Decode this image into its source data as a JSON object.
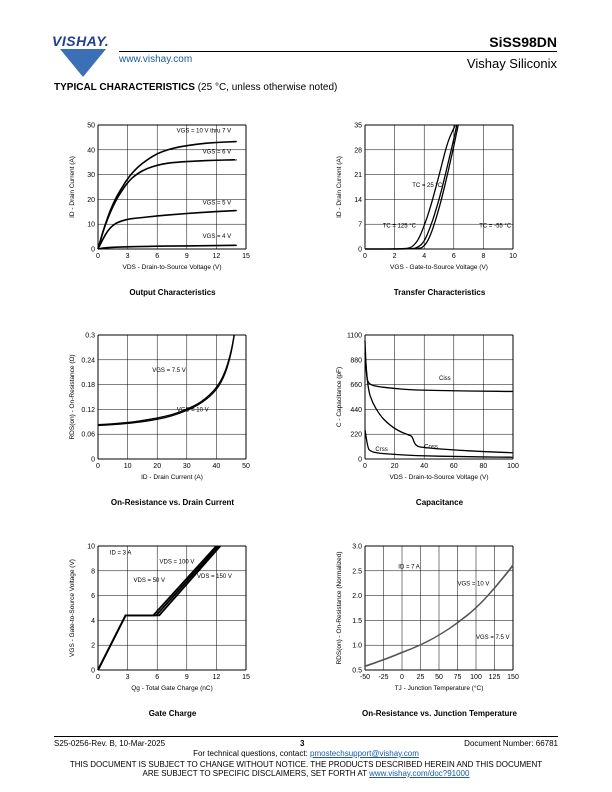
{
  "header": {
    "logo_text": "VISHAY.",
    "website": "www.vishay.com",
    "part_number": "SiSS98DN",
    "company": "Vishay Siliconix"
  },
  "section": {
    "title": "TYPICAL CHARACTERISTICS",
    "note": " (25 °C, unless otherwise noted)"
  },
  "charts": [
    {
      "name": "output",
      "caption": "Output Characteristics",
      "xlabel": "VDS - Drain-to-Source Voltage (V)",
      "ylabel": "ID - Drain Current (A)",
      "xticks": [
        "0",
        "3",
        "6",
        "9",
        "12",
        "15"
      ],
      "yticks": [
        "0",
        "10",
        "20",
        "30",
        "40",
        "50"
      ],
      "labels": [
        "VGS = 10 V thru 7 V",
        "VGS = 6 V",
        "VGS = 5 V",
        "VGS = 4 V"
      ]
    },
    {
      "name": "transfer",
      "caption": "Transfer Characteristics",
      "xlabel": "VGS - Gate-to-Source Voltage (V)",
      "ylabel": "ID - Drain Current (A)",
      "xticks": [
        "0",
        "2",
        "4",
        "6",
        "8",
        "10"
      ],
      "yticks": [
        "0",
        "7",
        "14",
        "21",
        "28",
        "35"
      ],
      "labels": [
        "TC = 25 °C",
        "TC = 125 °C",
        "TC = -55 °C"
      ]
    },
    {
      "name": "onres",
      "caption": "On-Resistance vs. Drain Current",
      "xlabel": "ID - Drain Current (A)",
      "ylabel": "RDS(on) - On-Resistance (Ω)",
      "xticks": [
        "0",
        "10",
        "20",
        "30",
        "40",
        "50"
      ],
      "yticks": [
        "0",
        "0.06",
        "0.12",
        "0.18",
        "0.24",
        "0.3"
      ],
      "labels": [
        "VGS = 7.5 V",
        "VGS = 10 V"
      ]
    },
    {
      "name": "cap",
      "caption": "Capacitance",
      "xlabel": "VDS - Drain-to-Source Voltage (V)",
      "ylabel": "C - Capacitance (pF)",
      "xticks": [
        "0",
        "20",
        "40",
        "60",
        "80",
        "100"
      ],
      "yticks": [
        "0",
        "220",
        "440",
        "660",
        "880",
        "1100"
      ],
      "labels": [
        "Ciss",
        "Coss",
        "Crss"
      ]
    },
    {
      "name": "gate",
      "caption": "Gate Charge",
      "xlabel": "Qg - Total Gate Charge (nC)",
      "ylabel": "VGS - Gate-to-Source Voltage (V)",
      "xticks": [
        "0",
        "3",
        "6",
        "9",
        "12",
        "15"
      ],
      "yticks": [
        "0",
        "2",
        "4",
        "6",
        "8",
        "10"
      ],
      "labels": [
        "ID = 3 A",
        "VDS = 100 V",
        "VDS = 50 V",
        "VDS = 150 V"
      ]
    },
    {
      "name": "onrestemp",
      "caption": "On-Resistance vs. Junction Temperature",
      "xlabel": "TJ - Junction Temperature (°C)",
      "ylabel": "RDS(on) - On-Resistance (Normalized)",
      "xticks": [
        "-50",
        "-25",
        "0",
        "25",
        "50",
        "75",
        "100",
        "125",
        "150"
      ],
      "yticks": [
        "0.5",
        "1.0",
        "1.5",
        "2.0",
        "2.5",
        "3.0"
      ],
      "labels": [
        "ID = 7 A",
        "VGS = 10 V",
        "VGS = 7.5 V"
      ]
    }
  ],
  "chart_data": [
    {
      "type": "line",
      "title": "Output Characteristics",
      "xlabel": "VDS - Drain-to-Source Voltage (V)",
      "ylabel": "ID - Drain Current (A)",
      "xlim": [
        0,
        15
      ],
      "ylim": [
        0,
        50
      ],
      "series": [
        {
          "name": "VGS = 10 V thru 7 V",
          "x": [
            0,
            0.5,
            1,
            1.5,
            2,
            3,
            4,
            5,
            6,
            7,
            8,
            10,
            12,
            14
          ],
          "y": [
            0,
            7,
            13,
            18,
            22,
            28.5,
            33,
            36,
            38.5,
            40,
            41,
            42.3,
            43,
            43.3
          ]
        },
        {
          "name": "VGS = 6 V",
          "x": [
            0,
            0.5,
            1,
            1.5,
            2,
            3,
            4,
            5,
            6,
            7,
            8,
            10,
            12,
            14
          ],
          "y": [
            0,
            7,
            12.5,
            17,
            21,
            27,
            30.5,
            32.5,
            33.8,
            34.6,
            35,
            35.5,
            35.8,
            36
          ]
        },
        {
          "name": "VGS = 5 V",
          "x": [
            0,
            0.5,
            1,
            1.5,
            2,
            3,
            4,
            6,
            8,
            10,
            12,
            14
          ],
          "y": [
            0,
            4,
            7.5,
            9.5,
            10.8,
            12,
            12.5,
            13.3,
            14,
            14.6,
            15.1,
            15.5
          ]
        },
        {
          "name": "VGS = 4 V",
          "x": [
            0,
            0.5,
            1,
            2,
            4,
            6,
            8,
            10,
            12,
            14
          ],
          "y": [
            0,
            0.4,
            0.6,
            0.8,
            1.0,
            1.1,
            1.2,
            1.3,
            1.4,
            1.5
          ]
        }
      ]
    },
    {
      "type": "line",
      "title": "Transfer Characteristics",
      "xlabel": "VGS - Gate-to-Source Voltage (V)",
      "ylabel": "ID - Drain Current (A)",
      "xlim": [
        0,
        10
      ],
      "ylim": [
        0,
        35
      ],
      "series": [
        {
          "name": "TC = 25 °C",
          "x": [
            0,
            3.2,
            3.6,
            4,
            4.4,
            4.8,
            5.2,
            5.6,
            6,
            6.2
          ],
          "y": [
            0,
            0,
            0.5,
            2,
            6,
            11,
            17,
            24,
            31,
            35
          ]
        },
        {
          "name": "TC = 125 °C",
          "x": [
            0,
            2.8,
            3.2,
            3.6,
            4,
            4.4,
            4.8,
            5.2,
            5.6,
            6.1
          ],
          "y": [
            0,
            0,
            0.6,
            2.5,
            6.5,
            11.5,
            17.5,
            24,
            30.5,
            35
          ]
        },
        {
          "name": "TC = -55 °C",
          "x": [
            0,
            3.6,
            4,
            4.4,
            4.8,
            5.2,
            5.6,
            6,
            6.3
          ],
          "y": [
            0,
            0,
            0.7,
            3.5,
            8.5,
            14.5,
            21.5,
            29,
            35
          ]
        }
      ]
    },
    {
      "type": "line",
      "title": "On-Resistance vs. Drain Current",
      "xlabel": "ID - Drain Current (A)",
      "ylabel": "RDS(on) - On-Resistance (Ω)",
      "xlim": [
        0,
        50
      ],
      "ylim": [
        0,
        0.3
      ],
      "series": [
        {
          "name": "VGS = 7.5 V",
          "x": [
            0,
            5,
            10,
            15,
            20,
            25,
            30,
            35,
            40,
            43,
            45,
            46
          ],
          "y": [
            0.083,
            0.085,
            0.088,
            0.093,
            0.099,
            0.107,
            0.12,
            0.138,
            0.17,
            0.21,
            0.26,
            0.3
          ]
        },
        {
          "name": "VGS = 10 V",
          "x": [
            0,
            5,
            10,
            15,
            20,
            25,
            30,
            35,
            40,
            43,
            45,
            46
          ],
          "y": [
            0.081,
            0.083,
            0.086,
            0.09,
            0.096,
            0.104,
            0.117,
            0.135,
            0.165,
            0.205,
            0.255,
            0.3
          ]
        }
      ]
    },
    {
      "type": "line",
      "title": "Capacitance",
      "xlabel": "VDS - Drain-to-Source Voltage (V)",
      "ylabel": "C - Capacitance (pF)",
      "xlim": [
        0,
        100
      ],
      "ylim": [
        0,
        1100
      ],
      "series": [
        {
          "name": "Ciss",
          "x": [
            0,
            1,
            2,
            4,
            6,
            10,
            20,
            30,
            40,
            60,
            80,
            100
          ],
          "y": [
            1050,
            740,
            680,
            660,
            650,
            640,
            625,
            615,
            610,
            605,
            602,
            600
          ]
        },
        {
          "name": "Coss",
          "x": [
            0,
            2,
            5,
            10,
            15,
            20,
            25,
            30,
            32,
            34,
            40,
            60,
            80,
            100
          ],
          "y": [
            940,
            620,
            500,
            390,
            320,
            270,
            235,
            210,
            200,
            115,
            100,
            80,
            65,
            55
          ]
        },
        {
          "name": "Crss",
          "x": [
            0,
            2,
            4,
            6,
            10,
            20,
            30,
            40,
            60,
            80,
            100
          ],
          "y": [
            260,
            90,
            70,
            60,
            50,
            40,
            33,
            28,
            22,
            18,
            15
          ]
        }
      ]
    },
    {
      "type": "line",
      "title": "Gate Charge",
      "xlabel": "Qg - Total Gate Charge (nC)",
      "ylabel": "VGS - Gate-to-Source Voltage (V)",
      "xlim": [
        0,
        15
      ],
      "ylim": [
        0,
        10
      ],
      "series": [
        {
          "name": "VDS = 50 V",
          "x": [
            0,
            2.8,
            5.6,
            12
          ],
          "y": [
            0,
            4.4,
            4.4,
            10
          ]
        },
        {
          "name": "VDS = 100 V",
          "x": [
            0,
            2.8,
            5.9,
            12.2
          ],
          "y": [
            0,
            4.4,
            4.4,
            10
          ]
        },
        {
          "name": "VDS = 150 V",
          "x": [
            0,
            2.8,
            6.2,
            12.4
          ],
          "y": [
            0,
            4.4,
            4.4,
            10
          ]
        }
      ]
    },
    {
      "type": "line",
      "title": "On-Resistance vs. Junction Temperature",
      "xlabel": "TJ - Junction Temperature (°C)",
      "ylabel": "RDS(on) - On-Resistance (Normalized)",
      "xlim": [
        -50,
        150
      ],
      "ylim": [
        0.5,
        3.0
      ],
      "series": [
        {
          "name": "VGS = 10 V",
          "x": [
            -50,
            -25,
            0,
            25,
            50,
            75,
            100,
            125,
            150
          ],
          "y": [
            0.58,
            0.71,
            0.86,
            1.0,
            1.2,
            1.45,
            1.75,
            2.15,
            2.62
          ]
        },
        {
          "name": "VGS = 7.5 V",
          "x": [
            -50,
            -25,
            0,
            25,
            50,
            75,
            100,
            125,
            150
          ],
          "y": [
            0.57,
            0.7,
            0.85,
            1.0,
            1.2,
            1.44,
            1.74,
            2.14,
            2.6
          ]
        }
      ]
    }
  ],
  "footer": {
    "docrev": "S25-0256-Rev. B, 10-Mar-2025",
    "page": "3",
    "docnum": "Document Number: 66781",
    "contact_prefix": "For technical questions, contact: ",
    "contact_email": "pmostechsupport@vishay.com",
    "notice1": "THIS DOCUMENT IS SUBJECT TO CHANGE WITHOUT NOTICE. THE PRODUCTS DESCRIBED HEREIN AND THIS DOCUMENT",
    "notice2_prefix": "ARE SUBJECT TO SPECIFIC DISCLAIMERS, SET FORTH AT ",
    "notice2_link": "www.vishay.com/doc?91000"
  }
}
